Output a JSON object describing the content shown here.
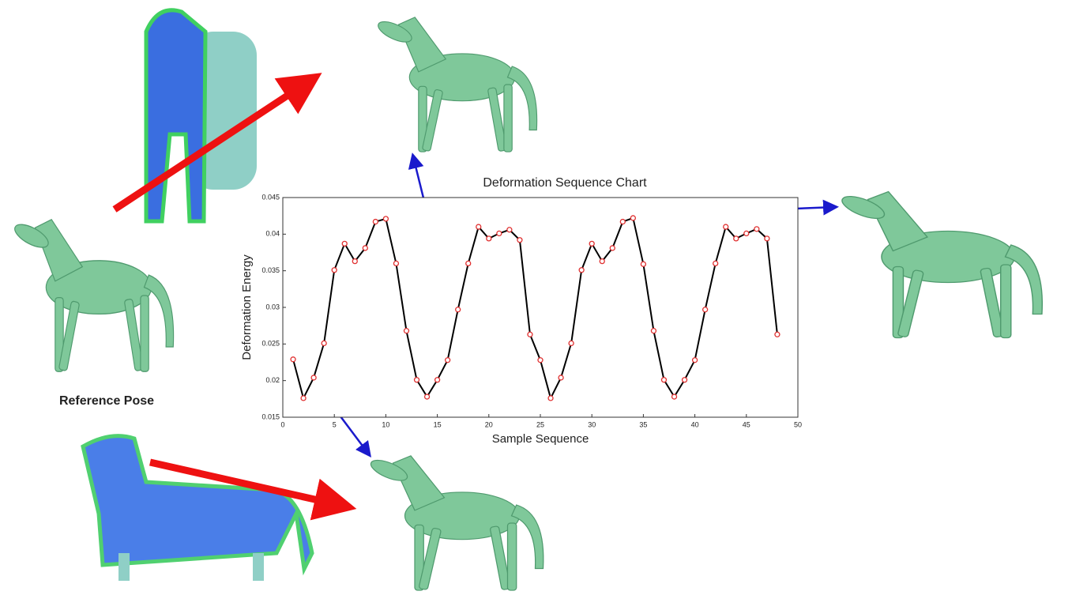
{
  "chart_data": {
    "type": "line",
    "title": "Deformation Sequence Chart",
    "x_label": "Sample Sequence",
    "y_label": "Deformation Energy",
    "annotation": "Reference Pose",
    "x": [
      1,
      2,
      3,
      4,
      5,
      6,
      7,
      8,
      9,
      10,
      11,
      12,
      13,
      14,
      15,
      16,
      17,
      18,
      19,
      20,
      21,
      22,
      23,
      24,
      25,
      26,
      27,
      28,
      29,
      30,
      31,
      32,
      33,
      34,
      35,
      36,
      37,
      38,
      39,
      40,
      41,
      42,
      43,
      44,
      45,
      46,
      47,
      48
    ],
    "series": [
      {
        "name": "Deformation Energy",
        "color": "#000000",
        "marker_color": "#e03030",
        "values": [
          0.0229,
          0.0176,
          0.0204,
          0.0251,
          0.0351,
          0.0387,
          0.0363,
          0.0381,
          0.0417,
          0.0421,
          0.036,
          0.0268,
          0.0201,
          0.0178,
          0.0201,
          0.0228,
          0.0297,
          0.036,
          0.041,
          0.0394,
          0.0401,
          0.0406,
          0.0392,
          0.0263,
          0.0228,
          0.0176,
          0.0204,
          0.0251,
          0.0351,
          0.0387,
          0.0363,
          0.0381,
          0.0417,
          0.0422,
          0.0359,
          0.0268,
          0.0201,
          0.0178,
          0.0201,
          0.0228,
          0.0297,
          0.036,
          0.041,
          0.0394,
          0.0401,
          0.0407,
          0.0394,
          0.0263
        ]
      }
    ],
    "xlim": [
      0,
      50
    ],
    "xticks": [
      0,
      5,
      10,
      15,
      20,
      25,
      30,
      35,
      40,
      45,
      50
    ],
    "ylim": [
      0.015,
      0.045
    ],
    "yticks": [
      0.015,
      0.02,
      0.025,
      0.03,
      0.035,
      0.04,
      0.045
    ],
    "grid": false
  }
}
